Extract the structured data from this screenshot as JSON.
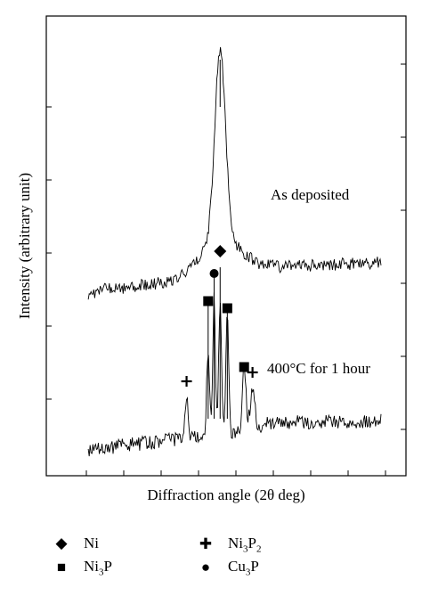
{
  "chart_data": {
    "type": "line",
    "xlabel": "Diffraction angle (2θ deg)",
    "ylabel": "Intensity (arbitrary unit)",
    "grid": false,
    "series": [
      {
        "name": "As deposited",
        "center": 44.5,
        "peak_height": 0.62
      },
      {
        "name": "400°C for 1 hour",
        "center": 44.5,
        "peak_height": 0.55
      }
    ],
    "annotations": [
      {
        "series": "As deposited",
        "phase": "Ni",
        "symbol": "diamond",
        "x": 44.5
      },
      {
        "series": "400°C for 1 hour",
        "phase": "Cu3P",
        "symbol": "circle",
        "x": 44.0
      },
      {
        "series": "400°C for 1 hour",
        "phase": "Ni3P",
        "symbol": "square",
        "x": 43.5
      },
      {
        "series": "400°C for 1 hour",
        "phase": "Ni3P",
        "symbol": "square",
        "x": 45.1
      },
      {
        "series": "400°C for 1 hour",
        "phase": "Ni3P",
        "symbol": "square",
        "x": 46.5
      },
      {
        "series": "400°C for 1 hour",
        "phase": "Ni3P2",
        "symbol": "plus",
        "x": 41.7
      },
      {
        "series": "400°C for 1 hour",
        "phase": "Ni3P2",
        "symbol": "plus",
        "x": 47.2
      }
    ]
  },
  "legend": [
    {
      "symbol": "◆",
      "name": "Ni",
      "base": "Ni",
      "sub": "",
      "tail": ""
    },
    {
      "symbol": "✚",
      "name": "Ni3P2",
      "base": "Ni",
      "sub": "3",
      "tail": "P",
      "sub2": "2"
    },
    {
      "symbol": "■",
      "name": "Ni3P",
      "base": "Ni",
      "sub": "3",
      "tail": "P",
      "sub2": ""
    },
    {
      "symbol": "●",
      "name": "Cu3P",
      "base": "Cu",
      "sub": "3",
      "tail": "P",
      "sub2": ""
    }
  ]
}
